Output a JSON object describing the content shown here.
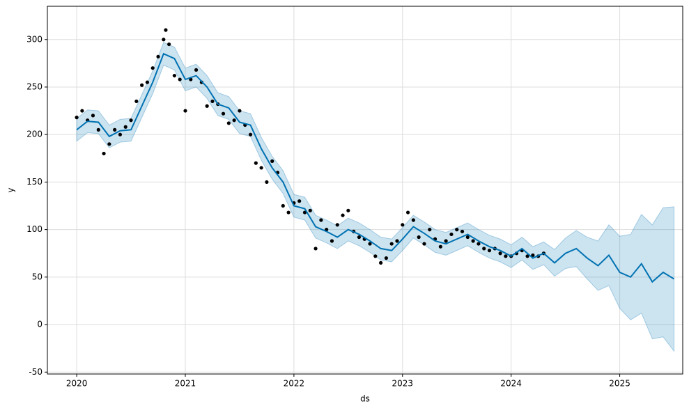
{
  "chart_data": {
    "type": "forecast",
    "xlabel": "ds",
    "ylabel": "y",
    "xlim": [
      2019.73,
      2025.58
    ],
    "ylim": [
      -52,
      335
    ],
    "xticks": [
      2020,
      2021,
      2022,
      2023,
      2024,
      2025
    ],
    "yticks": [
      -50,
      0,
      50,
      100,
      150,
      200,
      250,
      300
    ],
    "grid": true,
    "observed": {
      "color": "#000000",
      "x": [
        2020.0,
        2020.05,
        2020.1,
        2020.15,
        2020.2,
        2020.25,
        2020.3,
        2020.35,
        2020.4,
        2020.45,
        2020.5,
        2020.55,
        2020.6,
        2020.65,
        2020.7,
        2020.75,
        2020.8,
        2020.82,
        2020.85,
        2020.9,
        2020.95,
        2021.0,
        2021.05,
        2021.1,
        2021.15,
        2021.2,
        2021.25,
        2021.3,
        2021.35,
        2021.4,
        2021.45,
        2021.5,
        2021.55,
        2021.6,
        2021.65,
        2021.7,
        2021.75,
        2021.8,
        2021.85,
        2021.9,
        2021.95,
        2022.0,
        2022.05,
        2022.1,
        2022.15,
        2022.2,
        2022.25,
        2022.3,
        2022.35,
        2022.4,
        2022.45,
        2022.5,
        2022.55,
        2022.6,
        2022.65,
        2022.7,
        2022.75,
        2022.8,
        2022.85,
        2022.9,
        2022.95,
        2023.0,
        2023.05,
        2023.1,
        2023.15,
        2023.2,
        2023.25,
        2023.3,
        2023.35,
        2023.4,
        2023.45,
        2023.5,
        2023.55,
        2023.6,
        2023.65,
        2023.7,
        2023.75,
        2023.8,
        2023.85,
        2023.9,
        2023.95,
        2024.0,
        2024.05,
        2024.1,
        2024.15,
        2024.2,
        2024.25,
        2024.3
      ],
      "values": [
        218,
        225,
        215,
        220,
        205,
        180,
        190,
        205,
        200,
        208,
        215,
        235,
        252,
        255,
        270,
        282,
        300,
        310,
        295,
        262,
        258,
        225,
        258,
        268,
        255,
        230,
        235,
        232,
        222,
        212,
        215,
        225,
        210,
        200,
        170,
        165,
        150,
        172,
        160,
        125,
        118,
        128,
        130,
        118,
        120,
        80,
        110,
        100,
        88,
        105,
        115,
        120,
        98,
        92,
        90,
        85,
        72,
        65,
        70,
        85,
        88,
        105,
        118,
        110,
        92,
        85,
        100,
        90,
        82,
        88,
        95,
        100,
        98,
        92,
        88,
        85,
        80,
        78,
        80,
        75,
        72,
        72,
        75,
        78,
        72,
        73,
        72,
        75
      ]
    },
    "forecast": {
      "color": "#0072B2",
      "x": [
        2020.0,
        2020.1,
        2020.2,
        2020.3,
        2020.4,
        2020.5,
        2020.6,
        2020.7,
        2020.8,
        2020.9,
        2021.0,
        2021.1,
        2021.2,
        2021.3,
        2021.4,
        2021.5,
        2021.6,
        2021.7,
        2021.8,
        2021.9,
        2022.0,
        2022.1,
        2022.2,
        2022.3,
        2022.4,
        2022.5,
        2022.6,
        2022.7,
        2022.8,
        2022.9,
        2023.0,
        2023.1,
        2023.2,
        2023.3,
        2023.4,
        2023.5,
        2023.6,
        2023.7,
        2023.8,
        2023.9,
        2024.0,
        2024.1,
        2024.2,
        2024.3,
        2024.4,
        2024.5,
        2024.6,
        2024.7,
        2024.8,
        2024.9,
        2025.0,
        2025.1,
        2025.2,
        2025.3,
        2025.4,
        2025.5
      ],
      "values": [
        205,
        214,
        213,
        198,
        204,
        205,
        230,
        255,
        285,
        280,
        258,
        262,
        250,
        232,
        228,
        213,
        210,
        185,
        165,
        150,
        125,
        122,
        103,
        98,
        92,
        100,
        95,
        88,
        80,
        78,
        90,
        103,
        96,
        88,
        85,
        90,
        95,
        88,
        82,
        78,
        72,
        80,
        70,
        75,
        65,
        75,
        80,
        70,
        62,
        73,
        55,
        50,
        64,
        45,
        55,
        48
      ],
      "lower": [
        193,
        202,
        201,
        186,
        192,
        193,
        218,
        243,
        273,
        268,
        246,
        250,
        238,
        220,
        216,
        201,
        198,
        173,
        153,
        138,
        113,
        110,
        91,
        86,
        80,
        88,
        83,
        76,
        68,
        66,
        78,
        91,
        84,
        76,
        73,
        78,
        83,
        76,
        70,
        66,
        60,
        68,
        58,
        63,
        51,
        59,
        61,
        48,
        36,
        41,
        17,
        5,
        12,
        -15,
        -13,
        -28
      ],
      "upper": [
        217,
        226,
        225,
        210,
        216,
        217,
        242,
        267,
        297,
        292,
        270,
        274,
        262,
        244,
        240,
        225,
        222,
        197,
        177,
        162,
        137,
        134,
        115,
        110,
        104,
        112,
        107,
        100,
        92,
        90,
        102,
        115,
        108,
        100,
        97,
        102,
        107,
        100,
        94,
        90,
        84,
        92,
        82,
        87,
        79,
        91,
        99,
        92,
        88,
        105,
        93,
        95,
        116,
        105,
        123,
        124
      ]
    }
  }
}
